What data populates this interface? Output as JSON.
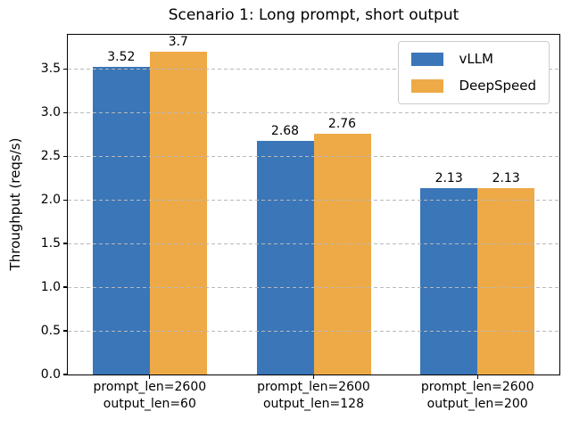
{
  "chart_data": {
    "type": "bar",
    "title": "Scenario 1: Long prompt, short output",
    "xlabel": "",
    "ylabel": "Throughput (reqs/s)",
    "categories": [
      [
        "prompt_len=2600",
        "output_len=60"
      ],
      [
        "prompt_len=2600",
        "output_len=128"
      ],
      [
        "prompt_len=2600",
        "output_len=200"
      ]
    ],
    "series": [
      {
        "name": "vLLM",
        "color": "#3a76b8",
        "values": [
          3.52,
          2.68,
          2.13
        ],
        "value_labels": [
          "3.52",
          "2.68",
          "2.13"
        ]
      },
      {
        "name": "DeepSpeed",
        "color": "#eeaa47",
        "values": [
          3.7,
          2.76,
          2.13
        ],
        "value_labels": [
          "3.7",
          "2.76",
          "2.13"
        ]
      }
    ],
    "ylim": [
      0,
      3.89
    ],
    "yticks": [
      0,
      0.5,
      1,
      1.5,
      2,
      2.5,
      3,
      3.5
    ],
    "ytick_labels": [
      "0.0",
      "0.5",
      "1.0",
      "1.5",
      "2.0",
      "2.5",
      "3.0",
      "3.5"
    ],
    "grid": {
      "axis": "y",
      "style": "dashed",
      "color": "#b9b9b9"
    },
    "legend": {
      "position": "upper right",
      "entries": [
        "vLLM",
        "DeepSpeed"
      ]
    }
  },
  "colors": {
    "vllm": "#3a76b8",
    "deepspeed": "#eeaa47",
    "grid": "#b9b9b9",
    "spine": "#000000",
    "legend_border": "#cccccc",
    "background": "#ffffff",
    "text": "#000000"
  }
}
